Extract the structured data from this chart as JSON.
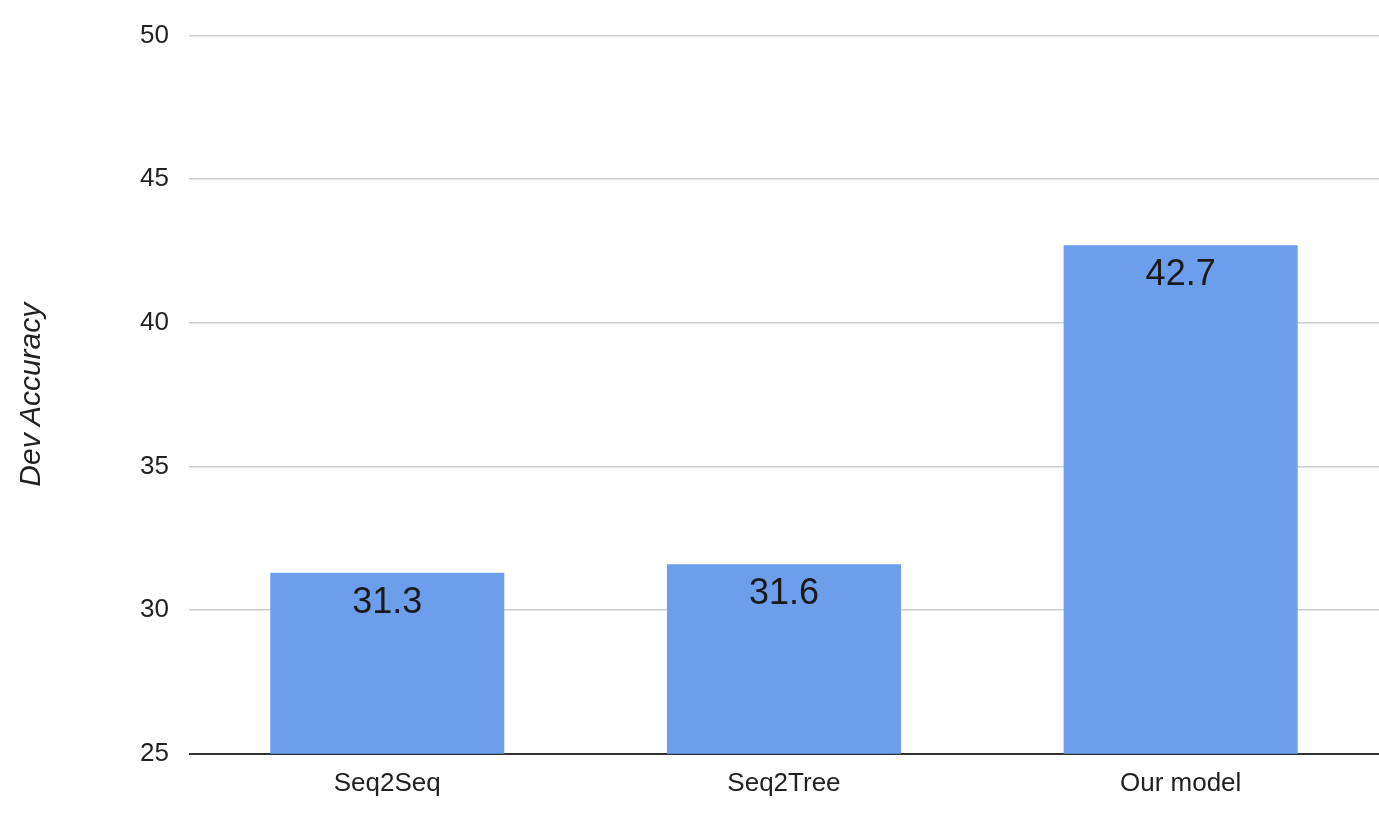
{
  "chart_data": {
    "type": "bar",
    "ylabel": "Dev Accuracy",
    "categories": [
      "Seq2Seq",
      "Seq2Tree",
      "Our model"
    ],
    "values": [
      31.3,
      31.6,
      42.7
    ],
    "color": "#6d9eeb",
    "ylim": [
      25,
      50
    ],
    "yticks": [
      25,
      30,
      35,
      40,
      45,
      50
    ],
    "grid": "y",
    "legend": false,
    "data_labels": true
  }
}
